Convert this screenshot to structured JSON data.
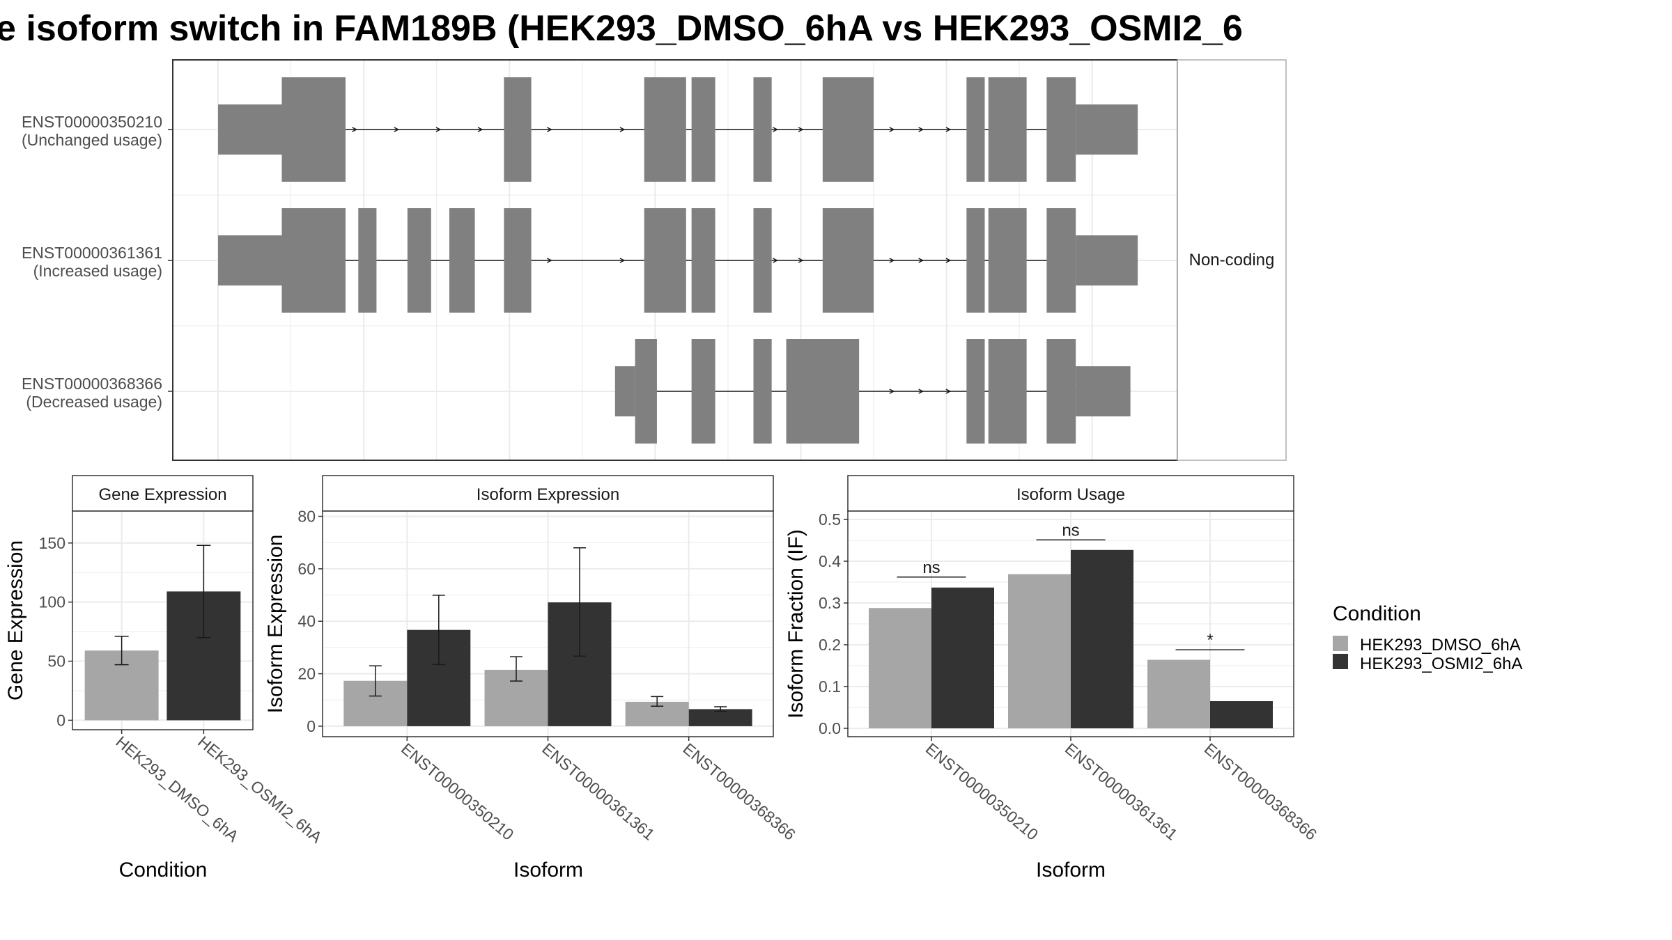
{
  "figure": {
    "title": "e isoform switch in FAM189B (HEK293_DMSO_6hA vs HEK293_OSMI2_6",
    "colors": {
      "dmso": "#A6A6A6",
      "osmi2": "#333333",
      "exon": "#808080",
      "grid": "#EBEBEB",
      "frame": "#333333"
    }
  },
  "chart_data": [
    {
      "type": "gene-structure",
      "panel_strip": "Non-coding",
      "transcripts": [
        {
          "id": "ENST00000350210",
          "usage": "(Unchanged usage)",
          "exons": [
            [
              0.0,
              0.35
            ],
            [
              0.35,
              0.7,
              "tall"
            ],
            [
              1.57,
              1.72,
              "tall"
            ],
            [
              2.34,
              2.57,
              "tall"
            ],
            [
              2.6,
              2.73,
              "tall"
            ],
            [
              2.94,
              3.04,
              "tall"
            ],
            [
              3.32,
              3.6,
              "tall"
            ],
            [
              4.11,
              4.21,
              "tall"
            ],
            [
              4.23,
              4.44,
              "tall"
            ],
            [
              4.55,
              4.71,
              "tall"
            ],
            [
              4.71,
              5.05
            ]
          ],
          "arrows": [
            0.76,
            0.99,
            1.22,
            1.45,
            1.83,
            2.23,
            3.07,
            3.21,
            3.71,
            3.87,
            4.02
          ]
        },
        {
          "id": "ENST00000361361",
          "usage": "(Increased usage)",
          "exons": [
            [
              0.0,
              0.35
            ],
            [
              0.35,
              0.7,
              "tall"
            ],
            [
              0.77,
              0.87,
              "tall"
            ],
            [
              1.04,
              1.17,
              "tall"
            ],
            [
              1.27,
              1.41,
              "tall"
            ],
            [
              1.57,
              1.72,
              "tall"
            ],
            [
              2.34,
              2.57,
              "tall"
            ],
            [
              2.6,
              2.73,
              "tall"
            ],
            [
              2.94,
              3.04,
              "tall"
            ],
            [
              3.32,
              3.6,
              "tall"
            ],
            [
              4.11,
              4.21,
              "tall"
            ],
            [
              4.23,
              4.44,
              "tall"
            ],
            [
              4.55,
              4.71,
              "tall"
            ],
            [
              4.71,
              5.05
            ]
          ],
          "arrows": [
            1.83,
            2.23,
            3.07,
            3.21,
            3.71,
            3.87,
            4.02
          ]
        },
        {
          "id": "ENST00000368366",
          "usage": "(Decreased usage)",
          "exons": [
            [
              2.18,
              2.29
            ],
            [
              2.29,
              2.41,
              "tall"
            ],
            [
              2.6,
              2.73,
              "tall"
            ],
            [
              2.94,
              3.04,
              "tall"
            ],
            [
              3.12,
              3.52,
              "tall"
            ],
            [
              4.11,
              4.21,
              "tall"
            ],
            [
              4.23,
              4.44,
              "tall"
            ],
            [
              4.55,
              4.71,
              "tall"
            ],
            [
              4.71,
              5.01
            ]
          ],
          "arrows": [
            3.71,
            3.87,
            4.02
          ]
        }
      ]
    },
    {
      "type": "bar",
      "title": "Gene Expression",
      "xlabel": "Condition",
      "ylabel": "Gene Expression",
      "categories": [
        "HEK293_DMSO_6hA",
        "HEK293_OSMI2_6hA"
      ],
      "values": [
        59,
        109
      ],
      "error_low": [
        47,
        70
      ],
      "error_high": [
        71,
        148
      ],
      "ylim": [
        -8,
        177
      ],
      "yticks": [
        "0",
        "50",
        "100",
        "150"
      ]
    },
    {
      "type": "bar",
      "title": "Isoform Expression",
      "xlabel": "Isoform",
      "ylabel": "Isoform Expression",
      "categories": [
        "ENST00000350210",
        "ENST00000361361",
        "ENST00000368366"
      ],
      "series": [
        {
          "name": "HEK293_DMSO_6hA",
          "values": [
            17.3,
            21.5,
            9.3
          ],
          "error_low": [
            11.5,
            17.2,
            7.6
          ],
          "error_high": [
            23,
            26.5,
            11.3
          ]
        },
        {
          "name": "HEK293_OSMI2_6hA",
          "values": [
            36.7,
            47.2,
            6.5
          ],
          "error_low": [
            23.5,
            26.7,
            5.7
          ],
          "error_high": [
            49.9,
            68,
            7.4
          ]
        }
      ],
      "ylim": [
        -4,
        82
      ],
      "yticks": [
        "0",
        "20",
        "40",
        "60",
        "80"
      ]
    },
    {
      "type": "bar",
      "title": "Isoform Usage",
      "xlabel": "Isoform",
      "ylabel": "Isoform Fraction (IF)",
      "categories": [
        "ENST00000350210",
        "ENST00000361361",
        "ENST00000368366"
      ],
      "series": [
        {
          "name": "HEK293_DMSO_6hA",
          "values": [
            0.288,
            0.369,
            0.164
          ]
        },
        {
          "name": "HEK293_OSMI2_6hA",
          "values": [
            0.337,
            0.427,
            0.065
          ]
        }
      ],
      "significance": [
        "ns",
        "ns",
        "*"
      ],
      "significance_y": [
        0.362,
        0.451,
        0.188
      ],
      "ylim": [
        -0.02,
        0.52
      ],
      "yticks": [
        "0.0",
        "0.1",
        "0.2",
        "0.3",
        "0.4",
        "0.5"
      ]
    }
  ],
  "legend": {
    "title": "Condition",
    "items": [
      "HEK293_DMSO_6hA",
      "HEK293_OSMI2_6hA"
    ]
  }
}
